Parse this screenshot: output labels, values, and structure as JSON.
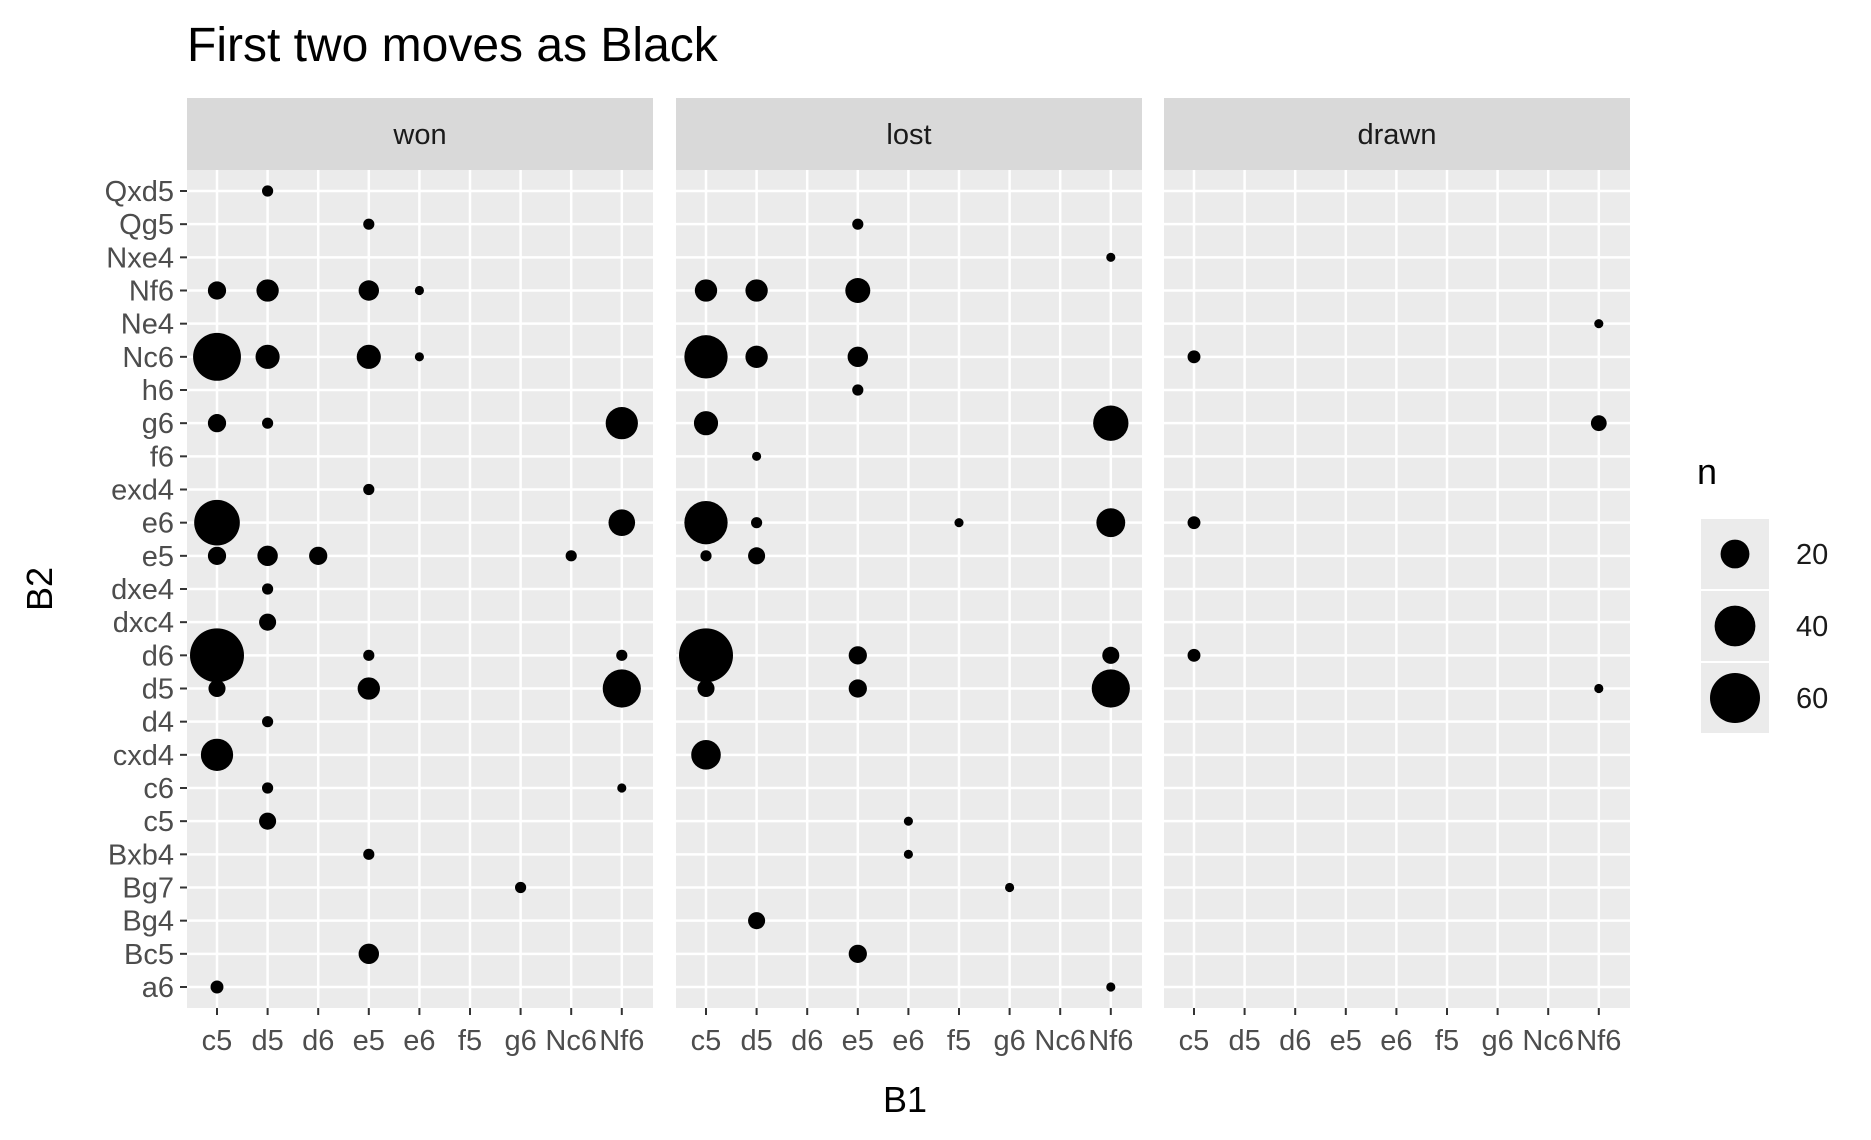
{
  "chart_data": {
    "type": "scatter",
    "title": "First two moves as Black",
    "xlabel": "B1",
    "ylabel": "B2",
    "x_categories": [
      "c5",
      "d5",
      "d6",
      "e5",
      "e6",
      "f5",
      "g6",
      "Nc6",
      "Nf6"
    ],
    "y_categories": [
      "a6",
      "Bc5",
      "Bg4",
      "Bg7",
      "Bxb4",
      "c5",
      "c6",
      "cxd4",
      "d4",
      "d5",
      "d6",
      "dxc4",
      "dxe4",
      "e5",
      "e6",
      "exd4",
      "f6",
      "g6",
      "h6",
      "Nc6",
      "Ne4",
      "Nf6",
      "Nxe4",
      "Qg5",
      "Qxd5"
    ],
    "facets": [
      "won",
      "lost",
      "drawn"
    ],
    "grid": true,
    "legend": {
      "title": "n",
      "position": "right",
      "breaks": [
        20,
        40,
        60
      ],
      "labels": [
        "20",
        "40",
        "60"
      ]
    },
    "size_range": [
      1,
      70
    ],
    "points": [
      {
        "facet": "won",
        "x": "c5",
        "y": "Nc6",
        "n": 55
      },
      {
        "facet": "won",
        "x": "c5",
        "y": "e6",
        "n": 50
      },
      {
        "facet": "won",
        "x": "c5",
        "y": "d6",
        "n": 70
      },
      {
        "facet": "won",
        "x": "c5",
        "y": "cxd4",
        "n": 25
      },
      {
        "facet": "won",
        "x": "c5",
        "y": "Nf6",
        "n": 8
      },
      {
        "facet": "won",
        "x": "c5",
        "y": "g6",
        "n": 8
      },
      {
        "facet": "won",
        "x": "c5",
        "y": "e5",
        "n": 8
      },
      {
        "facet": "won",
        "x": "c5",
        "y": "d5",
        "n": 7
      },
      {
        "facet": "won",
        "x": "c5",
        "y": "a6",
        "n": 4
      },
      {
        "facet": "won",
        "x": "d5",
        "y": "Qxd5",
        "n": 3
      },
      {
        "facet": "won",
        "x": "d5",
        "y": "Nf6",
        "n": 12
      },
      {
        "facet": "won",
        "x": "d5",
        "y": "Nc6",
        "n": 14
      },
      {
        "facet": "won",
        "x": "d5",
        "y": "g6",
        "n": 3
      },
      {
        "facet": "won",
        "x": "d5",
        "y": "e5",
        "n": 10
      },
      {
        "facet": "won",
        "x": "d5",
        "y": "dxe4",
        "n": 3
      },
      {
        "facet": "won",
        "x": "d5",
        "y": "dxc4",
        "n": 7
      },
      {
        "facet": "won",
        "x": "d5",
        "y": "d4",
        "n": 3
      },
      {
        "facet": "won",
        "x": "d5",
        "y": "c6",
        "n": 3
      },
      {
        "facet": "won",
        "x": "d5",
        "y": "c5",
        "n": 7
      },
      {
        "facet": "won",
        "x": "d6",
        "y": "e5",
        "n": 8
      },
      {
        "facet": "won",
        "x": "e5",
        "y": "Qg5",
        "n": 3
      },
      {
        "facet": "won",
        "x": "e5",
        "y": "Nf6",
        "n": 10
      },
      {
        "facet": "won",
        "x": "e5",
        "y": "Nc6",
        "n": 14
      },
      {
        "facet": "won",
        "x": "e5",
        "y": "exd4",
        "n": 3
      },
      {
        "facet": "won",
        "x": "e5",
        "y": "d6",
        "n": 3
      },
      {
        "facet": "won",
        "x": "e5",
        "y": "d5",
        "n": 12
      },
      {
        "facet": "won",
        "x": "e5",
        "y": "Bxb4",
        "n": 3
      },
      {
        "facet": "won",
        "x": "e5",
        "y": "Bc5",
        "n": 10
      },
      {
        "facet": "won",
        "x": "e6",
        "y": "Nf6",
        "n": 2
      },
      {
        "facet": "won",
        "x": "e6",
        "y": "Nc6",
        "n": 2
      },
      {
        "facet": "won",
        "x": "g6",
        "y": "Bg7",
        "n": 3
      },
      {
        "facet": "won",
        "x": "Nc6",
        "y": "e5",
        "n": 3
      },
      {
        "facet": "won",
        "x": "Nf6",
        "y": "g6",
        "n": 25
      },
      {
        "facet": "won",
        "x": "Nf6",
        "y": "e6",
        "n": 17
      },
      {
        "facet": "won",
        "x": "Nf6",
        "y": "d6",
        "n": 3
      },
      {
        "facet": "won",
        "x": "Nf6",
        "y": "d5",
        "n": 35
      },
      {
        "facet": "won",
        "x": "Nf6",
        "y": "c6",
        "n": 2
      },
      {
        "facet": "lost",
        "x": "c5",
        "y": "Nf6",
        "n": 12
      },
      {
        "facet": "lost",
        "x": "c5",
        "y": "Nc6",
        "n": 45
      },
      {
        "facet": "lost",
        "x": "c5",
        "y": "g6",
        "n": 14
      },
      {
        "facet": "lost",
        "x": "c5",
        "y": "e6",
        "n": 45
      },
      {
        "facet": "lost",
        "x": "c5",
        "y": "e5",
        "n": 3
      },
      {
        "facet": "lost",
        "x": "c5",
        "y": "d6",
        "n": 70
      },
      {
        "facet": "lost",
        "x": "c5",
        "y": "d5",
        "n": 7
      },
      {
        "facet": "lost",
        "x": "c5",
        "y": "cxd4",
        "n": 21
      },
      {
        "facet": "lost",
        "x": "d5",
        "y": "Nf6",
        "n": 12
      },
      {
        "facet": "lost",
        "x": "d5",
        "y": "Nc6",
        "n": 12
      },
      {
        "facet": "lost",
        "x": "d5",
        "y": "f6",
        "n": 2
      },
      {
        "facet": "lost",
        "x": "d5",
        "y": "e6",
        "n": 3
      },
      {
        "facet": "lost",
        "x": "d5",
        "y": "e5",
        "n": 7
      },
      {
        "facet": "lost",
        "x": "d5",
        "y": "Bg4",
        "n": 7
      },
      {
        "facet": "lost",
        "x": "e5",
        "y": "Qg5",
        "n": 3
      },
      {
        "facet": "lost",
        "x": "e5",
        "y": "Nf6",
        "n": 15
      },
      {
        "facet": "lost",
        "x": "e5",
        "y": "Nc6",
        "n": 10
      },
      {
        "facet": "lost",
        "x": "e5",
        "y": "h6",
        "n": 3
      },
      {
        "facet": "lost",
        "x": "e5",
        "y": "d6",
        "n": 8
      },
      {
        "facet": "lost",
        "x": "e5",
        "y": "d5",
        "n": 8
      },
      {
        "facet": "lost",
        "x": "e5",
        "y": "Bc5",
        "n": 8
      },
      {
        "facet": "lost",
        "x": "e6",
        "y": "c5",
        "n": 2
      },
      {
        "facet": "lost",
        "x": "e6",
        "y": "Bxb4",
        "n": 2
      },
      {
        "facet": "lost",
        "x": "f5",
        "y": "e6",
        "n": 2
      },
      {
        "facet": "lost",
        "x": "g6",
        "y": "Bg7",
        "n": 2
      },
      {
        "facet": "lost",
        "x": "Nf6",
        "y": "Nxe4",
        "n": 2
      },
      {
        "facet": "lost",
        "x": "Nf6",
        "y": "g6",
        "n": 30
      },
      {
        "facet": "lost",
        "x": "Nf6",
        "y": "e6",
        "n": 20
      },
      {
        "facet": "lost",
        "x": "Nf6",
        "y": "d6",
        "n": 7
      },
      {
        "facet": "lost",
        "x": "Nf6",
        "y": "d5",
        "n": 35
      },
      {
        "facet": "lost",
        "x": "Nf6",
        "y": "a6",
        "n": 2
      },
      {
        "facet": "drawn",
        "x": "c5",
        "y": "Nc6",
        "n": 4
      },
      {
        "facet": "drawn",
        "x": "c5",
        "y": "e6",
        "n": 4
      },
      {
        "facet": "drawn",
        "x": "c5",
        "y": "d6",
        "n": 4
      },
      {
        "facet": "drawn",
        "x": "Nf6",
        "y": "Ne4",
        "n": 2
      },
      {
        "facet": "drawn",
        "x": "Nf6",
        "y": "g6",
        "n": 6
      },
      {
        "facet": "drawn",
        "x": "Nf6",
        "y": "d5",
        "n": 2
      }
    ]
  }
}
